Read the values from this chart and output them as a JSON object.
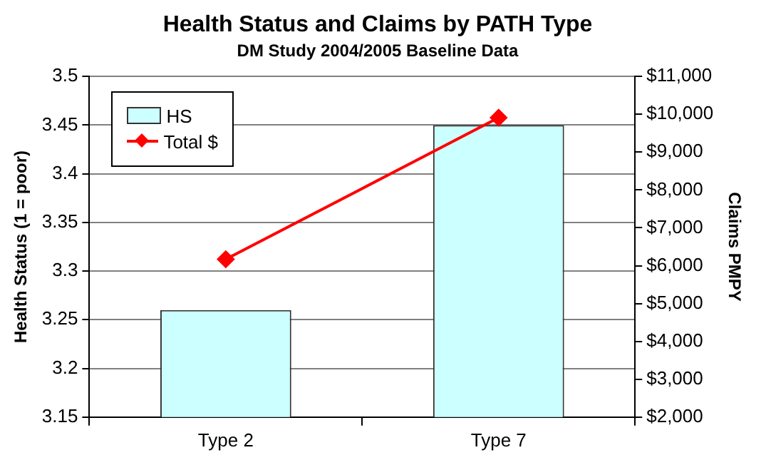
{
  "chart_data": {
    "type": "bar",
    "title": "Health Status and Claims by PATH Type",
    "subtitle": "DM Study 2004/2005 Baseline Data",
    "ylabel": "Health Status (1 = poor)",
    "y2label": "Claims PMPY",
    "categories": [
      "Type 2",
      "Type 7"
    ],
    "series": [
      {
        "name": "HS",
        "color": "#ccffff",
        "values": [
          3.26,
          3.45
        ]
      },
      {
        "name": "Total $",
        "type": "line",
        "color": "#ff0000",
        "axis": "y2",
        "marker": "diamond",
        "values": [
          6170,
          9910
        ]
      }
    ],
    "ylim": [
      3.15,
      3.5
    ],
    "yticks": [
      3.15,
      3.2,
      3.25,
      3.3,
      3.35,
      3.4,
      3.45,
      3.5
    ],
    "y2lim": [
      2000,
      11000
    ],
    "y2ticks": [
      {
        "value": 2000,
        "label": "$2,000"
      },
      {
        "value": 3000,
        "label": "$3,000"
      },
      {
        "value": 4000,
        "label": "$4,000"
      },
      {
        "value": 5000,
        "label": "$5,000"
      },
      {
        "value": 6000,
        "label": "$6,000"
      },
      {
        "value": 7000,
        "label": "$7,000"
      },
      {
        "value": 8000,
        "label": "$8,000"
      },
      {
        "value": 9000,
        "label": "$9,000"
      },
      {
        "value": 10000,
        "label": "$10,000"
      },
      {
        "value": 11000,
        "label": "$11,000"
      }
    ],
    "grid": "y",
    "legend": "top left"
  }
}
